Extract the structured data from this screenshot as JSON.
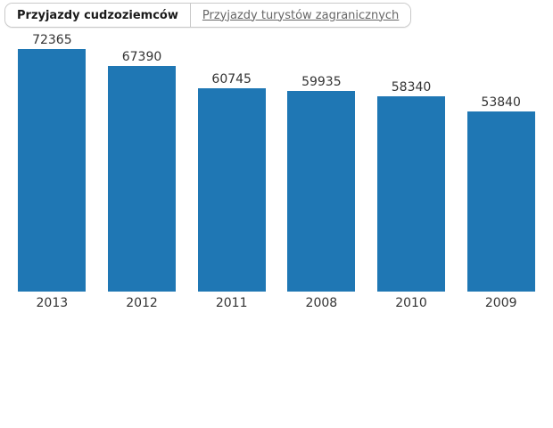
{
  "tabs": [
    {
      "label": "Przyjazdy cudzoziemców",
      "active": true
    },
    {
      "label": "Przyjazdy turystów zagranicznych",
      "active": false
    }
  ],
  "chart_data": {
    "type": "bar",
    "categories": [
      "2013",
      "2012",
      "2011",
      "2008",
      "2010",
      "2009"
    ],
    "values": [
      72365,
      67390,
      60745,
      59935,
      58340,
      53840
    ],
    "title": "",
    "xlabel": "",
    "ylabel": "",
    "ylim": [
      0,
      72365
    ],
    "grid": false,
    "legend": false,
    "value_labels_shown": true,
    "bar_color": "#1f77b4",
    "label_color": "#333333"
  }
}
